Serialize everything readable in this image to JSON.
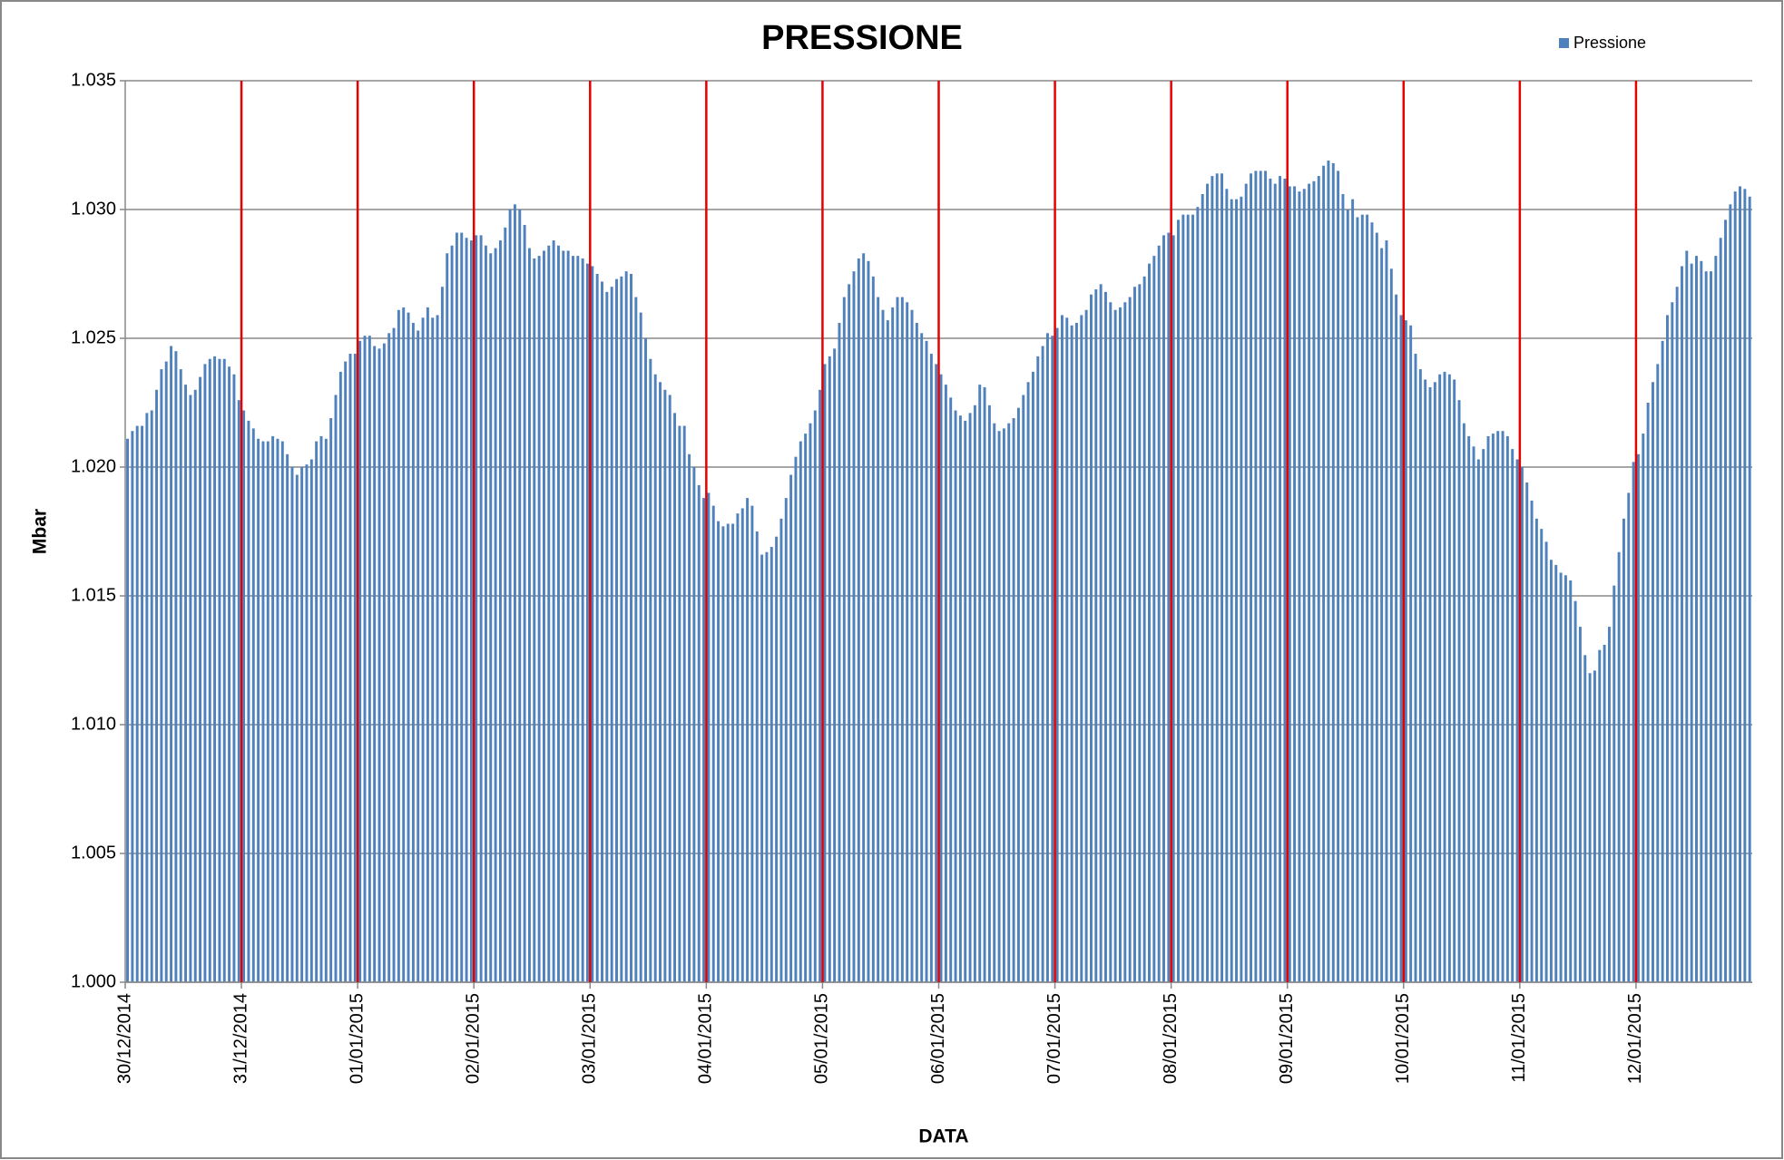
{
  "chart_data": {
    "type": "bar",
    "title": "PRESSIONE",
    "x_label": "DATA",
    "y_label": "Mbar",
    "color": "#4f81bd",
    "grid": true,
    "legend": "top-right",
    "series": [
      {
        "name": "Pressione",
        "color": "#4f81bd",
        "values": [
          1.0211,
          1.0214,
          1.0216,
          1.0216,
          1.0221,
          1.0222,
          1.023,
          1.0238,
          1.0241,
          1.0247,
          1.0245,
          1.0238,
          1.0232,
          1.0228,
          1.023,
          1.0235,
          1.024,
          1.0242,
          1.0243,
          1.0242,
          1.0242,
          1.0239,
          1.0236,
          1.0226,
          1.0222,
          1.0218,
          1.0215,
          1.0211,
          1.021,
          1.021,
          1.0212,
          1.0211,
          1.021,
          1.0205,
          1.02,
          1.0197,
          1.02,
          1.0201,
          1.0203,
          1.021,
          1.0212,
          1.0211,
          1.0219,
          1.0228,
          1.0237,
          1.0241,
          1.0244,
          1.0244,
          1.0249,
          1.0251,
          1.0251,
          1.0247,
          1.0246,
          1.0248,
          1.0252,
          1.0254,
          1.0261,
          1.0262,
          1.026,
          1.0256,
          1.0253,
          1.0258,
          1.0262,
          1.0258,
          1.0259,
          1.027,
          1.0283,
          1.0286,
          1.0291,
          1.0291,
          1.0289,
          1.0288,
          1.029,
          1.029,
          1.0286,
          1.0283,
          1.0285,
          1.0288,
          1.0293,
          1.03,
          1.0302,
          1.03,
          1.0294,
          1.0285,
          1.0281,
          1.0282,
          1.0284,
          1.0286,
          1.0288,
          1.0286,
          1.0284,
          1.0284,
          1.0282,
          1.0282,
          1.0281,
          1.0279,
          1.0278,
          1.0275,
          1.0272,
          1.0268,
          1.027,
          1.0273,
          1.0274,
          1.0276,
          1.0275,
          1.0266,
          1.026,
          1.025,
          1.0242,
          1.0236,
          1.0233,
          1.023,
          1.0228,
          1.0221,
          1.0216,
          1.0216,
          1.0205,
          1.02,
          1.0193,
          1.0188,
          1.019,
          1.0185,
          1.0179,
          1.0177,
          1.0178,
          1.0178,
          1.0182,
          1.0184,
          1.0188,
          1.0185,
          1.0175,
          1.0166,
          1.0167,
          1.0169,
          1.0173,
          1.018,
          1.0188,
          1.0197,
          1.0204,
          1.021,
          1.0213,
          1.0217,
          1.0222,
          1.023,
          1.024,
          1.0243,
          1.0246,
          1.0256,
          1.0266,
          1.0271,
          1.0276,
          1.0281,
          1.0283,
          1.028,
          1.0274,
          1.0266,
          1.0261,
          1.0257,
          1.0262,
          1.0266,
          1.0266,
          1.0264,
          1.0261,
          1.0256,
          1.0252,
          1.0249,
          1.0244,
          1.024,
          1.0236,
          1.0232,
          1.0227,
          1.0222,
          1.022,
          1.0218,
          1.0221,
          1.0224,
          1.0232,
          1.0231,
          1.0224,
          1.0217,
          1.0214,
          1.0215,
          1.0217,
          1.0219,
          1.0223,
          1.0228,
          1.0233,
          1.0237,
          1.0243,
          1.0247,
          1.0252,
          1.0251,
          1.0254,
          1.0259,
          1.0258,
          1.0255,
          1.0256,
          1.0259,
          1.0261,
          1.0267,
          1.0269,
          1.0271,
          1.0268,
          1.0264,
          1.0261,
          1.0262,
          1.0264,
          1.0266,
          1.027,
          1.0271,
          1.0274,
          1.0279,
          1.0282,
          1.0286,
          1.029,
          1.0291,
          1.029,
          1.0296,
          1.0298,
          1.0298,
          1.0298,
          1.0301,
          1.0306,
          1.031,
          1.0313,
          1.0314,
          1.0314,
          1.0308,
          1.0304,
          1.0304,
          1.0305,
          1.031,
          1.0314,
          1.0315,
          1.0315,
          1.0315,
          1.0312,
          1.031,
          1.0313,
          1.0312,
          1.0309,
          1.0309,
          1.0307,
          1.0308,
          1.031,
          1.0311,
          1.0313,
          1.0317,
          1.0319,
          1.0318,
          1.0315,
          1.0306,
          1.03,
          1.0304,
          1.0297,
          1.0298,
          1.0298,
          1.0295,
          1.0291,
          1.0285,
          1.0288,
          1.0277,
          1.0267,
          1.0259,
          1.0257,
          1.0255,
          1.0244,
          1.0238,
          1.0234,
          1.0231,
          1.0233,
          1.0236,
          1.0237,
          1.0236,
          1.0234,
          1.0226,
          1.0217,
          1.0212,
          1.0208,
          1.0203,
          1.0207,
          1.0212,
          1.0213,
          1.0214,
          1.0214,
          1.0212,
          1.0207,
          1.0203,
          1.02,
          1.0194,
          1.0187,
          1.018,
          1.0176,
          1.0171,
          1.0164,
          1.0162,
          1.0159,
          1.0158,
          1.0156,
          1.0148,
          1.0138,
          1.0127,
          1.012,
          1.0121,
          1.0129,
          1.0131,
          1.0138,
          1.0154,
          1.0167,
          1.018,
          1.019,
          1.0202,
          1.0205,
          1.0213,
          1.0225,
          1.0233,
          1.024,
          1.0249,
          1.0259,
          1.0264,
          1.027,
          1.0278,
          1.0284,
          1.0279,
          1.0282,
          1.028,
          1.0276,
          1.0276,
          1.0282,
          1.0289,
          1.0296,
          1.0302,
          1.0307,
          1.0309,
          1.0308,
          1.0305
        ]
      }
    ],
    "categories": [
      "30/12/2014",
      null,
      null,
      null,
      null,
      null,
      null,
      null,
      null,
      null,
      null,
      null,
      null,
      null,
      null,
      null,
      null,
      null,
      null,
      null,
      null,
      null,
      null,
      null,
      "31/12/2014",
      null,
      null,
      null,
      null,
      null,
      null,
      null,
      null,
      null,
      null,
      null,
      null,
      null,
      null,
      null,
      null,
      null,
      null,
      null,
      null,
      null,
      null,
      null,
      "01/01/2015",
      null,
      null,
      null,
      null,
      null,
      null,
      null,
      null,
      null,
      null,
      null,
      null,
      null,
      null,
      null,
      null,
      null,
      null,
      null,
      null,
      null,
      null,
      null,
      "02/01/2015",
      null,
      null,
      null,
      null,
      null,
      null,
      null,
      null,
      null,
      null,
      null,
      null,
      null,
      null,
      null,
      null,
      null,
      null,
      null,
      null,
      null,
      null,
      null,
      "03/01/2015",
      null,
      null,
      null,
      null,
      null,
      null,
      null,
      null,
      null,
      null,
      null,
      null,
      null,
      null,
      null,
      null,
      null,
      null,
      null,
      null,
      null,
      null,
      null,
      "04/01/2015",
      null,
      null,
      null,
      null,
      null,
      null,
      null,
      null,
      null,
      null,
      null,
      null,
      null,
      null,
      null,
      null,
      null,
      null,
      null,
      null,
      null,
      null,
      null,
      "05/01/2015",
      null,
      null,
      null,
      null,
      null,
      null,
      null,
      null,
      null,
      null,
      null,
      null,
      null,
      null,
      null,
      null,
      null,
      null,
      null,
      null,
      null,
      null,
      null,
      "06/01/2015",
      null,
      null,
      null,
      null,
      null,
      null,
      null,
      null,
      null,
      null,
      null,
      null,
      null,
      null,
      null,
      null,
      null,
      null,
      null,
      null,
      null,
      null,
      null,
      "07/01/2015",
      null,
      null,
      null,
      null,
      null,
      null,
      null,
      null,
      null,
      null,
      null,
      null,
      null,
      null,
      null,
      null,
      null,
      null,
      null,
      null,
      null,
      null,
      null,
      "08/01/2015",
      null,
      null,
      null,
      null,
      null,
      null,
      null,
      null,
      null,
      null,
      null,
      null,
      null,
      null,
      null,
      null,
      null,
      null,
      null,
      null,
      null,
      null,
      null,
      "09/01/2015",
      null,
      null,
      null,
      null,
      null,
      null,
      null,
      null,
      null,
      null,
      null,
      null,
      null,
      null,
      null,
      null,
      null,
      null,
      null,
      null,
      null,
      null,
      null,
      "10/01/2015",
      null,
      null,
      null,
      null,
      null,
      null,
      null,
      null,
      null,
      null,
      null,
      null,
      null,
      null,
      null,
      null,
      null,
      null,
      null,
      null,
      null,
      null,
      null,
      "11/01/2015",
      null,
      null,
      null,
      null,
      null,
      null,
      null,
      null,
      null,
      null,
      null,
      null,
      null,
      null,
      null,
      null,
      null,
      null,
      null,
      null,
      null,
      null,
      null,
      "12/01/2015",
      null,
      null,
      null,
      null,
      null,
      null,
      null,
      null,
      null,
      null,
      null,
      null,
      null,
      null,
      null,
      null,
      null,
      null,
      null,
      null,
      null,
      null,
      null
    ],
    "ylim": [
      1,
      1.035
    ],
    "yticks": [
      {
        "value": 1,
        "label": "1.000"
      },
      1.005,
      {
        "value": 1.01,
        "label": "1.010"
      },
      1.015,
      {
        "value": 1.02,
        "label": "1.020"
      },
      1.025,
      {
        "value": 1.03,
        "label": "1.030"
      },
      1.035
    ]
  }
}
